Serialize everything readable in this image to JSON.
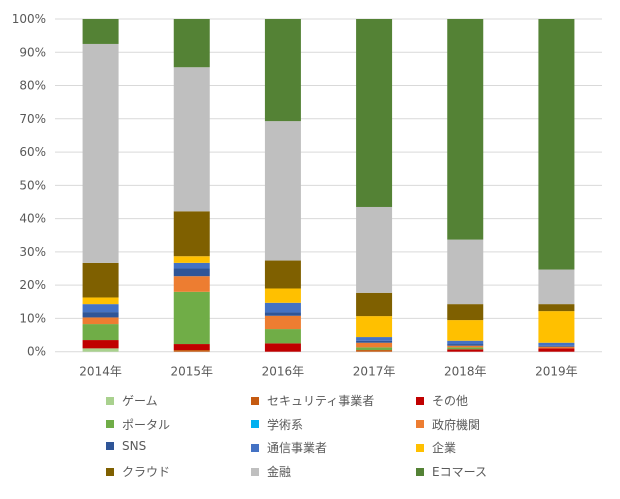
{
  "chart_data": {
    "type": "bar",
    "stacked": true,
    "percent": true,
    "categories": [
      "2014年",
      "2015年",
      "2016年",
      "2017年",
      "2018年",
      "2019年"
    ],
    "ylim": [
      0,
      100
    ],
    "yticks": [
      "0%",
      "10%",
      "20%",
      "30%",
      "40%",
      "50%",
      "60%",
      "70%",
      "80%",
      "90%",
      "100%"
    ],
    "grid": true,
    "legend_position": "bottom",
    "series": [
      {
        "name": "ゲーム",
        "color": "#a9d18e",
        "values": [
          1,
          0,
          0,
          0,
          0,
          0
        ]
      },
      {
        "name": "セキュリティ事業者",
        "color": "#c55a11",
        "values": [
          0,
          0.5,
          0,
          0.5,
          0,
          0
        ]
      },
      {
        "name": "その他",
        "color": "#c00000",
        "values": [
          2.5,
          1.8,
          2.5,
          0,
          0.7,
          1
        ]
      },
      {
        "name": "ポータル",
        "color": "#70ad47",
        "values": [
          4.8,
          15.7,
          4.3,
          0.8,
          0.6,
          0
        ]
      },
      {
        "name": "学術系",
        "color": "#00b0f0",
        "values": [
          0,
          0,
          0,
          0,
          0,
          0
        ]
      },
      {
        "name": "政府機関",
        "color": "#ed7d31",
        "values": [
          2,
          4.7,
          4,
          1.4,
          0.5,
          0.5
        ]
      },
      {
        "name": "SNS",
        "color": "#2f5597",
        "values": [
          1.6,
          2.3,
          1,
          0.6,
          0.5,
          0.3
        ]
      },
      {
        "name": "通信事業者",
        "color": "#4472c4",
        "values": [
          2.4,
          1.7,
          2.9,
          1.1,
          1,
          0.9
        ]
      },
      {
        "name": "企業",
        "color": "#ffc000",
        "values": [
          2,
          2,
          4.3,
          6.3,
          6.2,
          9.5
        ]
      },
      {
        "name": "クラウド",
        "color": "#7f6000",
        "values": [
          10.4,
          13.5,
          8.4,
          7,
          4.8,
          2.1
        ]
      },
      {
        "name": "金融",
        "color": "#bfbfbf",
        "values": [
          65.8,
          43.3,
          41.9,
          25.8,
          19.4,
          10.4
        ]
      },
      {
        "name": "Eコマース",
        "color": "#548235",
        "values": [
          7.5,
          14.5,
          30.7,
          56.5,
          66.3,
          75.3
        ]
      }
    ]
  }
}
